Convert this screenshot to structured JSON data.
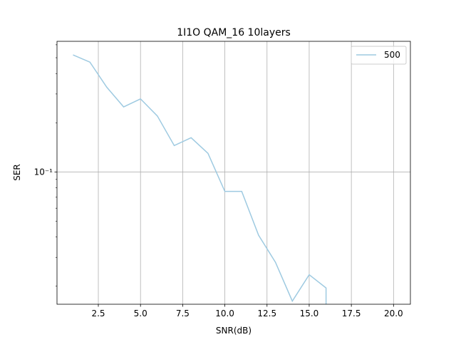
{
  "chart_data": {
    "type": "line",
    "title": "1I1O QAM_16 10layers",
    "xlabel": "SNR(dB)",
    "ylabel": "SER",
    "x_scale": "linear",
    "y_scale": "log",
    "xlim": [
      0.05,
      21.0
    ],
    "ylim": [
      0.0155,
      0.63
    ],
    "x_ticks": [
      2.5,
      5.0,
      7.5,
      10.0,
      12.5,
      15.0,
      17.5,
      20.0
    ],
    "x_tick_labels": [
      "2.5",
      "5.0",
      "7.5",
      "10.0",
      "12.5",
      "15.0",
      "17.5",
      "20.0"
    ],
    "y_ticks": [
      0.1
    ],
    "y_tick_labels": [
      "10⁻¹"
    ],
    "grid": true,
    "legend_position": "upper-right",
    "series": [
      {
        "name": "500",
        "color": "#9ecae1",
        "x": [
          1,
          2,
          3,
          4,
          5,
          6,
          7,
          8,
          9,
          10,
          11,
          12,
          13,
          14,
          15,
          16
        ],
        "y": [
          0.52,
          0.47,
          0.33,
          0.25,
          0.28,
          0.22,
          0.145,
          0.162,
          0.13,
          0.076,
          0.076,
          0.041,
          0.028,
          0.0162,
          0.0235,
          0.0195
        ]
      }
    ]
  }
}
